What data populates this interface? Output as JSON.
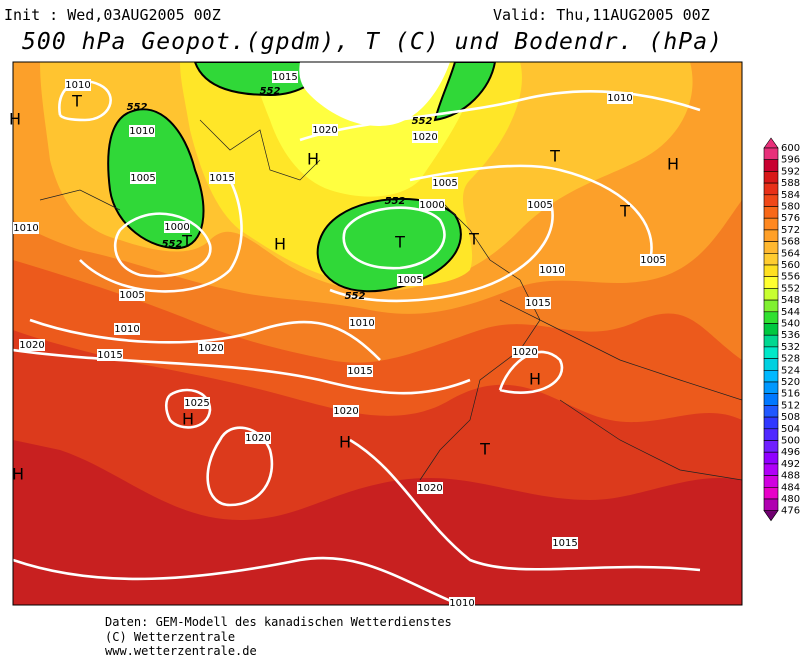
{
  "header": {
    "init": "Init : Wed,03AUG2005 00Z",
    "valid": "Valid: Thu,11AUG2005 00Z",
    "title": "500 hPa Geopot.(gpdm), T (C) und Bodendr. (hPa)"
  },
  "footer": [
    "Daten: GEM-Modell des kanadischen Wetterdienstes",
    "(C) Wetterzentrale",
    "www.wetterzentrale.de"
  ],
  "colorbar": {
    "values": [
      600,
      596,
      592,
      588,
      584,
      580,
      576,
      572,
      568,
      564,
      560,
      556,
      552,
      548,
      544,
      540,
      536,
      532,
      528,
      524,
      520,
      516,
      512,
      508,
      504,
      500,
      496,
      492,
      488,
      484,
      480,
      476
    ],
    "colors": [
      "#e8307a",
      "#c80030",
      "#d81818",
      "#e83018",
      "#f04818",
      "#f86818",
      "#ff8820",
      "#ffa028",
      "#ffb830",
      "#ffcc30",
      "#ffe020",
      "#ffff30",
      "#c8ff30",
      "#80f030",
      "#30e030",
      "#00c840",
      "#00d890",
      "#00e8c8",
      "#00d0e0",
      "#00b8ff",
      "#0098ff",
      "#0078ff",
      "#2058ff",
      "#3038ff",
      "#5028ff",
      "#7020ff",
      "#9000ff",
      "#b000f8",
      "#d000e0",
      "#e800c8",
      "#b000b0",
      "#700070"
    ]
  },
  "map": {
    "pressure_systems": [
      "T",
      "H",
      "H",
      "H",
      "T",
      "T",
      "T",
      "T",
      "H",
      "H",
      "H",
      "H",
      "T",
      "T",
      "H"
    ],
    "isobar_labels": [
      "1010",
      "1015",
      "1010",
      "1020",
      "1020",
      "1010",
      "1005",
      "1015",
      "1005",
      "1000",
      "1005",
      "1000",
      "1010",
      "1010",
      "1005",
      "1005",
      "1005",
      "1015",
      "1010",
      "1010",
      "1015",
      "1020",
      "1020",
      "1015",
      "1020",
      "1025",
      "1020",
      "1020",
      "1020",
      "1015",
      "1010"
    ],
    "height_labels": [
      "552",
      "552",
      "552",
      "552",
      "552",
      "552"
    ]
  }
}
